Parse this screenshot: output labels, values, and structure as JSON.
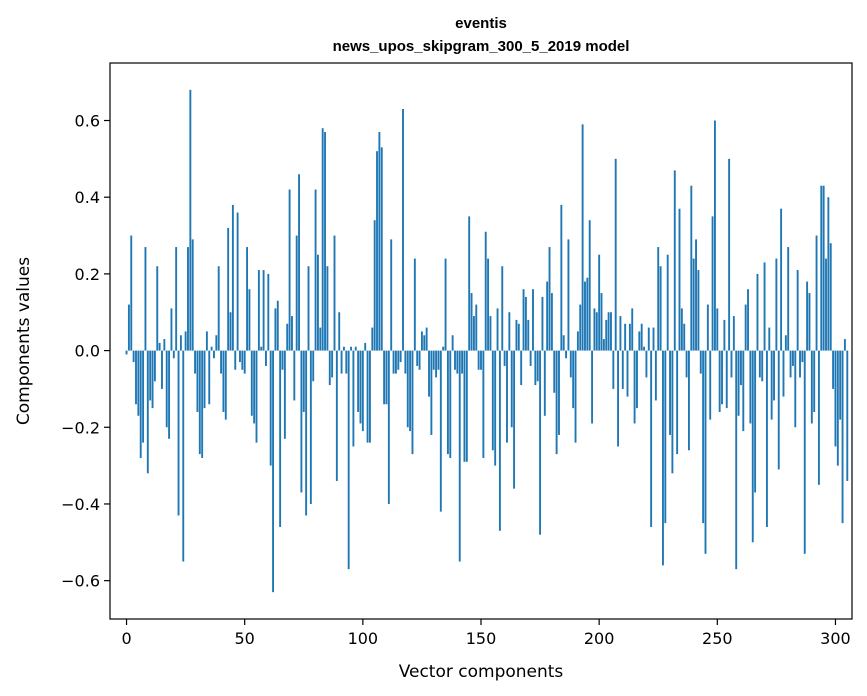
{
  "chart_data": {
    "type": "bar",
    "title": "eventis",
    "subtitle": "news_upos_skipgram_300_5_2019 model",
    "xlabel": "Vector components",
    "ylabel": "Components values",
    "xlim": [
      -7,
      307
    ],
    "ylim": [
      -0.7,
      0.75
    ],
    "xticks": [
      0,
      50,
      100,
      150,
      200,
      250,
      300
    ],
    "xtick_labels": [
      "0",
      "50",
      "100",
      "150",
      "200",
      "250",
      "300"
    ],
    "yticks": [
      -0.6,
      -0.4,
      -0.2,
      0.0,
      0.2,
      0.4,
      0.6
    ],
    "ytick_labels": [
      "−0.6",
      "−0.4",
      "−0.2",
      "0.0",
      "0.2",
      "0.4",
      "0.6"
    ],
    "bar_color": "#1f77b4",
    "grid": false,
    "values": [
      -0.01,
      0.12,
      0.3,
      -0.03,
      -0.14,
      -0.17,
      -0.28,
      -0.24,
      0.27,
      -0.32,
      -0.13,
      -0.15,
      -0.08,
      0.22,
      0.02,
      -0.1,
      0.03,
      -0.2,
      -0.23,
      0.11,
      -0.02,
      0.27,
      -0.43,
      0.04,
      -0.55,
      0.05,
      0.27,
      0.68,
      0.29,
      -0.06,
      -0.16,
      -0.27,
      -0.28,
      -0.15,
      0.05,
      -0.14,
      0.01,
      -0.02,
      0.04,
      0.22,
      -0.06,
      -0.16,
      -0.18,
      0.32,
      0.1,
      0.38,
      -0.05,
      0.36,
      -0.03,
      -0.05,
      -0.06,
      0.27,
      0.16,
      -0.17,
      -0.19,
      -0.24,
      0.21,
      0.01,
      0.21,
      -0.04,
      0.2,
      -0.3,
      -0.63,
      0.11,
      0.13,
      -0.46,
      -0.05,
      -0.23,
      0.07,
      0.42,
      0.09,
      -0.13,
      0.3,
      0.46,
      -0.37,
      -0.16,
      -0.43,
      0.22,
      -0.4,
      -0.08,
      0.42,
      0.25,
      0.06,
      0.58,
      0.57,
      0.22,
      -0.09,
      -0.07,
      0.3,
      -0.34,
      0.1,
      -0.06,
      0.01,
      -0.06,
      -0.57,
      0.01,
      -0.25,
      0.01,
      -0.16,
      -0.19,
      -0.21,
      0.02,
      -0.24,
      -0.24,
      0.06,
      0.34,
      0.52,
      0.57,
      0.53,
      -0.14,
      -0.14,
      -0.4,
      0.29,
      -0.06,
      -0.06,
      -0.05,
      -0.03,
      0.63,
      -0.06,
      -0.2,
      -0.21,
      -0.27,
      0.24,
      -0.04,
      -0.05,
      0.05,
      0.04,
      0.06,
      -0.12,
      -0.22,
      -0.05,
      -0.07,
      -0.05,
      -0.42,
      0.01,
      0.24,
      -0.27,
      -0.28,
      0.04,
      -0.05,
      -0.06,
      -0.55,
      -0.06,
      -0.29,
      -0.29,
      0.35,
      0.15,
      0.09,
      0.12,
      -0.05,
      -0.05,
      -0.28,
      0.31,
      0.24,
      0.09,
      -0.26,
      -0.3,
      0.11,
      -0.47,
      0.22,
      -0.04,
      -0.24,
      0.1,
      -0.2,
      -0.36,
      0.08,
      0.07,
      -0.09,
      0.16,
      0.14,
      0.08,
      -0.04,
      0.16,
      -0.09,
      -0.08,
      -0.48,
      0.14,
      -0.17,
      0.18,
      0.27,
      0.15,
      -0.11,
      -0.27,
      -0.22,
      0.38,
      0.04,
      -0.02,
      0.29,
      -0.07,
      -0.15,
      -0.24,
      0.05,
      0.12,
      0.59,
      0.18,
      0.19,
      0.34,
      -0.19,
      0.11,
      0.1,
      0.25,
      0.15,
      0.03,
      0.08,
      0.1,
      0.1,
      -0.1,
      0.5,
      -0.25,
      0.09,
      -0.1,
      0.07,
      -0.12,
      0.07,
      0.11,
      -0.19,
      -0.15,
      0.05,
      0.07,
      0.01,
      -0.07,
      0.06,
      -0.46,
      0.06,
      -0.13,
      0.27,
      0.22,
      -0.56,
      -0.45,
      0.25,
      -0.22,
      -0.32,
      0.47,
      -0.27,
      0.37,
      0.11,
      0.07,
      -0.07,
      -0.26,
      0.43,
      0.24,
      0.29,
      0.21,
      -0.06,
      -0.45,
      -0.53,
      0.12,
      -0.18,
      0.35,
      0.6,
      0.11,
      -0.16,
      -0.14,
      0.08,
      -0.15,
      0.5,
      -0.07,
      0.09,
      -0.57,
      -0.17,
      -0.09,
      -0.21,
      0.12,
      0.16,
      -0.19,
      -0.5,
      -0.37,
      0.2,
      -0.07,
      -0.08,
      0.23,
      -0.46,
      0.06,
      -0.18,
      -0.13,
      0.24,
      -0.31,
      0.37,
      -0.12,
      0.04,
      0.27,
      -0.07,
      -0.04,
      -0.2,
      0.21,
      -0.07,
      -0.03,
      -0.53,
      0.18,
      0.15,
      -0.19,
      -0.16,
      0.3,
      -0.35,
      0.43,
      0.43,
      0.24,
      0.4,
      0.28,
      -0.1,
      -0.25,
      -0.3,
      -0.18,
      -0.45,
      0.03,
      -0.34
    ]
  }
}
